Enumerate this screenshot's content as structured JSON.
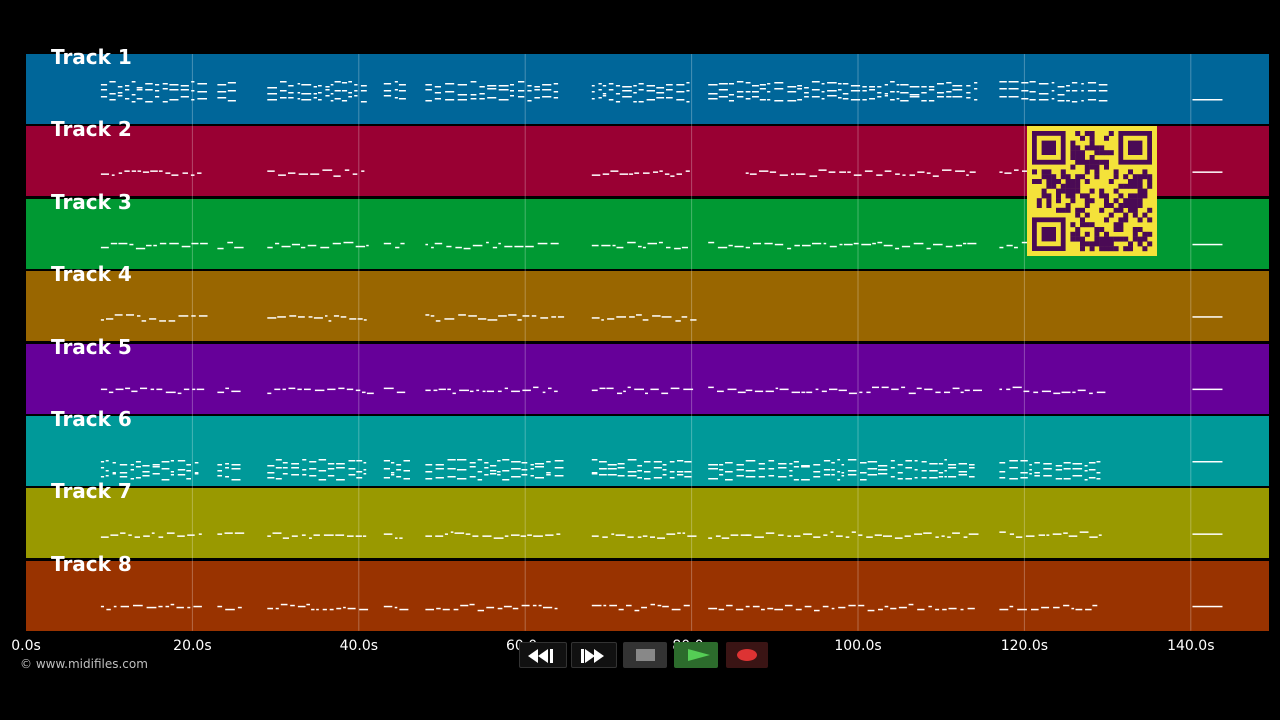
{
  "window": {
    "background": "#000000"
  },
  "tracks": [
    {
      "label": "Track 1",
      "color": "#006699"
    },
    {
      "label": "Track 2",
      "color": "#990033"
    },
    {
      "label": "Track 3",
      "color": "#009933"
    },
    {
      "label": "Track 4",
      "color": "#996600"
    },
    {
      "label": "Track 5",
      "color": "#660099"
    },
    {
      "label": "Track 6",
      "color": "#009999"
    },
    {
      "label": "Track 7",
      "color": "#999900"
    },
    {
      "label": "Track 8",
      "color": "#993300"
    }
  ],
  "timeline": {
    "tick_labels": [
      "0.0s",
      "20.0s",
      "40.0s",
      "60.0s",
      "80.0s",
      "100.0s",
      "120.0s",
      "140.0s"
    ],
    "visible_range_seconds": [
      0,
      149.4
    ],
    "grid": true,
    "note_color": "#ffffff"
  },
  "copyright": "© www.midifiles.com",
  "transport": {
    "buttons": [
      {
        "name": "rewind-button",
        "icon": "rewind-icon"
      },
      {
        "name": "fast-forward-button",
        "icon": "fast-forward-icon"
      },
      {
        "name": "stop-button",
        "icon": "stop-icon"
      },
      {
        "name": "play-button",
        "icon": "play-icon",
        "accent": "#55cc55"
      },
      {
        "name": "record-button",
        "icon": "record-icon",
        "accent": "#dd3333"
      }
    ]
  },
  "qr_code": {
    "icon": "qr-code-icon",
    "background": "#f4e23a",
    "module_color": "#4a0a55"
  }
}
